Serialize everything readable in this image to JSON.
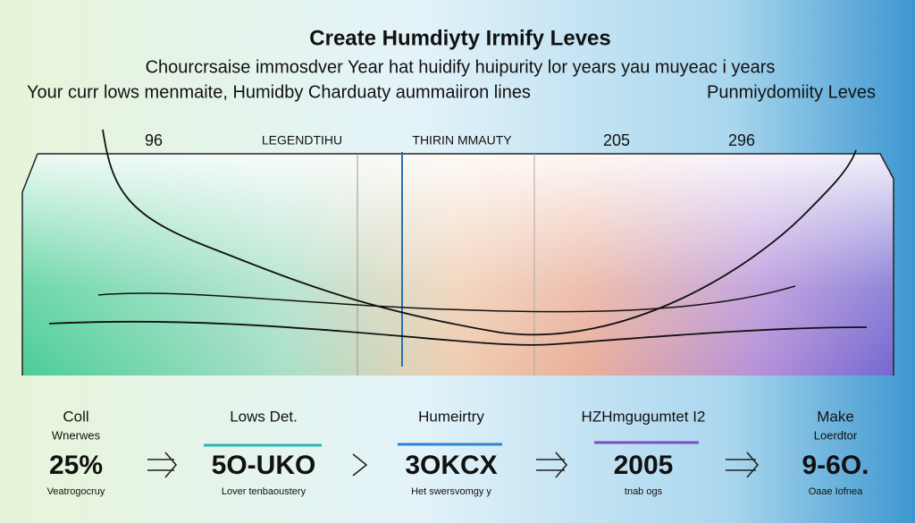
{
  "header": {
    "title": "Create Humdiyty Irmify Leves",
    "subtitle": "Chourcrsaise immosdver   Year hat huidify huipurity lor years yau muyeac i years",
    "line_left": "Your curr lows menmaite, Humidby Charduaty aummaiiron lines",
    "line_right": "Punmiydomiity Leves"
  },
  "chart": {
    "labels": [
      "96",
      "LEGENDTIHU",
      "THIRIN MMAUTY",
      "205",
      "296"
    ]
  },
  "steps": [
    {
      "top": "Coll",
      "sub": "Wnerwes",
      "value": "25%",
      "caption": "Veatrogocruy"
    },
    {
      "top": "Lows Det.",
      "value": "5O-UKO",
      "caption": "Lover tenbaoustery"
    },
    {
      "top": "Humeirtry",
      "value": "3OKCX",
      "caption": "Het swersvomgy y"
    },
    {
      "top": "HZHmgugumtet I2",
      "value": "2005",
      "caption": "tnab ogs"
    },
    {
      "top": "Make",
      "sub": "Loerdtor",
      "value": "9-6O.",
      "caption": "Oaae Iofnea"
    }
  ]
}
